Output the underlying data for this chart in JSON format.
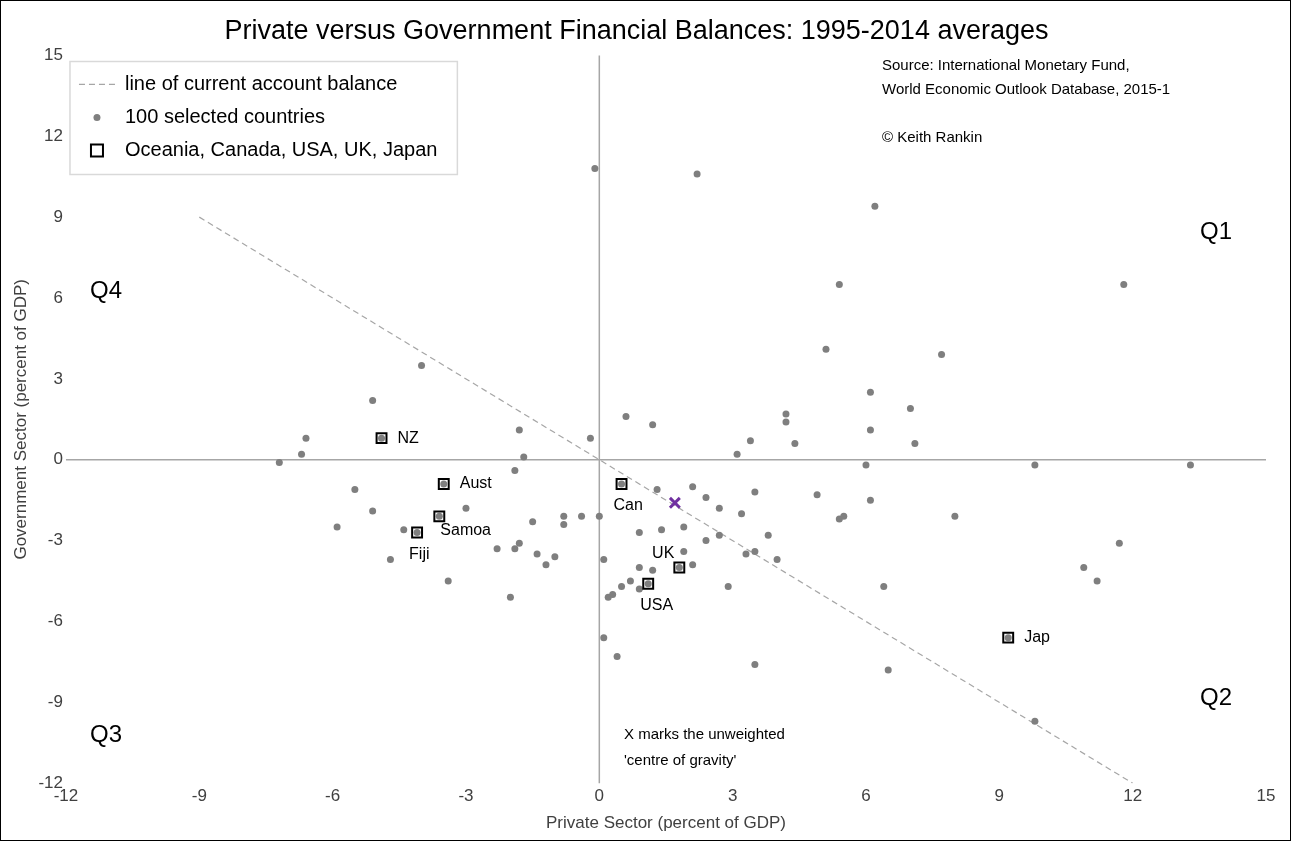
{
  "chart_data": {
    "type": "scatter",
    "title": "Private versus Government Financial Balances: 1995-2014 averages",
    "xlabel": "Private Sector (percent of GDP)",
    "ylabel": "Government Sector (percent of GDP)",
    "xlim": [
      -12,
      15
    ],
    "xticks": [
      -12,
      -9,
      -6,
      -3,
      0,
      3,
      6,
      9,
      12,
      15
    ],
    "ylim": [
      -12,
      15
    ],
    "yticks": [
      -12,
      -9,
      -6,
      -3,
      0,
      3,
      6,
      9,
      12,
      15
    ],
    "legend": "top left",
    "series": [
      {
        "name": "line of current account balance",
        "type": "line",
        "color": "#a6a6a6",
        "line_style": "dashed",
        "marker": "none",
        "x": [
          -9,
          12
        ],
        "values": [
          9,
          -12
        ]
      },
      {
        "name": "100 selected countries",
        "color": "#7f7f7f",
        "marker": "circle",
        "x": [
          -4.0,
          -5.1,
          -6.6,
          -6.7,
          -7.2,
          -4.9,
          -1.8,
          -0.2,
          -1.7,
          -1.9,
          -3.5,
          -5.5,
          -5.1,
          -3.0,
          -3.6,
          -5.9,
          -4.4,
          -4.1,
          -1.5,
          -0.8,
          -0.4,
          0.0,
          -0.8,
          -1.8,
          -2.3,
          -1.9,
          -1.4,
          -1.0,
          -1.2,
          -4.7,
          -3.4,
          -2.0,
          0.6,
          1.2,
          4.2,
          4.2,
          3.4,
          3.1,
          4.4,
          7.0,
          6.1,
          7.1,
          6.0,
          0.5,
          1.3,
          2.1,
          2.4,
          2.7,
          3.5,
          3.2,
          4.9,
          6.1,
          5.4,
          5.5,
          0.9,
          1.4,
          1.9,
          2.4,
          2.7,
          3.8,
          0.1,
          1.9,
          1.8,
          2.1,
          3.3,
          3.5,
          4.0,
          0.9,
          1.2,
          1.1,
          0.7,
          0.5,
          0.9,
          0.2,
          0.3,
          2.9,
          6.4,
          0.1,
          0.4,
          3.5,
          6.5,
          -0.1,
          2.2,
          6.2,
          5.4,
          11.8,
          5.1,
          7.7,
          6.1,
          9.8,
          13.3,
          8.0,
          11.7,
          10.9,
          11.2,
          9.2,
          9.8
        ],
        "values": [
          3.5,
          2.2,
          0.8,
          0.2,
          -0.1,
          0.8,
          1.1,
          0.8,
          0.1,
          -0.4,
          -0.9,
          -1.1,
          -1.9,
          -1.8,
          -2.1,
          -2.5,
          -2.6,
          -2.7,
          -2.3,
          -2.1,
          -2.1,
          -2.1,
          -2.4,
          -3.1,
          -3.3,
          -3.3,
          -3.5,
          -3.6,
          -3.9,
          -3.7,
          -4.5,
          -5.1,
          1.6,
          1.3,
          1.7,
          1.4,
          0.7,
          0.2,
          0.6,
          1.9,
          1.1,
          0.6,
          -0.2,
          -0.9,
          -1.1,
          -1.0,
          -1.4,
          -1.8,
          -1.2,
          -2.0,
          -1.3,
          -1.5,
          -2.2,
          -2.1,
          -2.7,
          -2.6,
          -2.5,
          -3.0,
          -2.8,
          -2.8,
          -3.7,
          -3.4,
          -4.0,
          -3.9,
          -3.5,
          -3.4,
          -3.7,
          -4.0,
          -4.1,
          -4.6,
          -4.5,
          -4.7,
          -4.8,
          -5.1,
          -5.0,
          -4.7,
          -4.7,
          -6.6,
          -7.3,
          -7.6,
          -7.8,
          10.8,
          10.6,
          9.4,
          6.5,
          6.5,
          4.1,
          3.9,
          2.5,
          -0.2,
          -0.2,
          -2.1,
          -3.1,
          -4.0,
          -4.5,
          -6.6,
          -9.7
        ]
      },
      {
        "name": "Oceania, Canada, USA, UK, Japan",
        "color": "#000000",
        "marker": "square",
        "x": [
          -4.9,
          -3.5,
          -3.6,
          -4.1,
          0.5,
          1.8,
          1.1,
          9.2
        ],
        "values": [
          0.8,
          -0.9,
          -2.1,
          -2.7,
          -0.9,
          -4.0,
          -4.6,
          -6.6
        ]
      },
      {
        "color": "#7030a0",
        "marker": "cross",
        "x": [
          1.7
        ],
        "values": [
          -1.6
        ]
      }
    ],
    "annotations": [
      "Source: International Monetary Fund,",
      "World Economic Outlook Database, 2015-1",
      "© Keith Rankin",
      "Q1",
      "Q2",
      "Q3",
      "Q4",
      "X marks the unweighted",
      "'centre of gravity'",
      {
        "text": "NZ",
        "x": -4.9,
        "y": 0.8
      },
      {
        "text": "Aust",
        "x": -3.5,
        "y": -0.9
      },
      {
        "text": "Samoa",
        "x": -3.6,
        "y": -2.1
      },
      {
        "text": "Fiji",
        "x": -4.1,
        "y": -2.7
      },
      {
        "text": "Can",
        "x": 0.5,
        "y": -0.9
      },
      {
        "text": "UK",
        "x": 1.8,
        "y": -4.0
      },
      {
        "text": "USA",
        "x": 1.1,
        "y": -4.6
      },
      {
        "text": "Jap",
        "x": 9.2,
        "y": -6.6
      }
    ]
  }
}
